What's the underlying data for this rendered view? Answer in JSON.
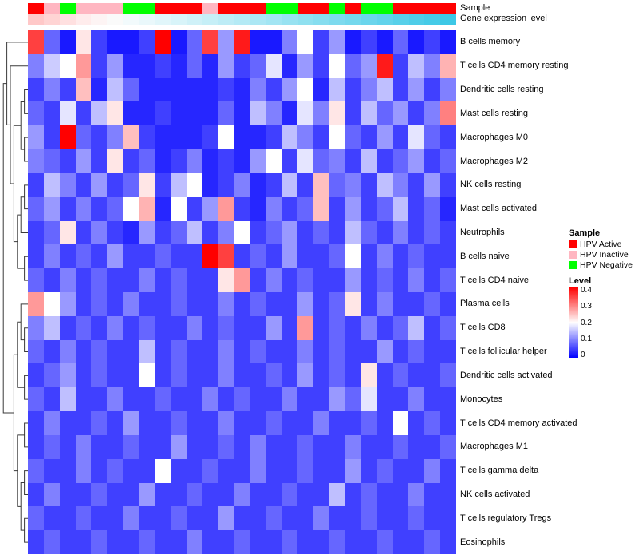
{
  "annotation_labels": {
    "sample": "Sample",
    "gene": "Gene expression level"
  },
  "legend": {
    "sample": {
      "title": "Sample",
      "items": [
        {
          "label": "HPV Active",
          "color": "#FF0000"
        },
        {
          "label": "HPV Inactive",
          "color": "#FFB6C1"
        },
        {
          "label": "HPV Negative",
          "color": "#00FF00"
        }
      ]
    },
    "level": {
      "title": "Level",
      "ticks": [
        "0.4",
        "0.3",
        "0.2",
        "0.1",
        "0"
      ],
      "top_color": "#FF0000",
      "mid_color": "#FFFFFF",
      "bottom_color": "#0000FF"
    }
  },
  "chart_data": {
    "type": "heatmap",
    "title": "",
    "rows": [
      "B cells memory",
      "T cells CD4 memory resting",
      "Dendritic cells resting",
      "Mast cells resting",
      "Macrophages M0",
      "Macrophages M2",
      "NK cells resting",
      "Mast cells activated",
      "Neutrophils",
      "B cells naive",
      "T cells CD4 naive",
      "Plasma cells",
      "T cells CD8",
      "T cells follicular helper",
      "Dendritic cells activated",
      "Monocytes",
      "T cells CD4 memory activated",
      "Macrophages M1",
      "T cells gamma delta",
      "NK cells activated",
      "T cells regulatory Tregs",
      "Eosinophils"
    ],
    "n_columns": 27,
    "color_scale": {
      "min": 0,
      "mid": 0.2,
      "max": 0.4,
      "min_color": "#0000FF",
      "mid_color": "#FFFFFF",
      "max_color": "#FF0000"
    },
    "column_annotations": {
      "sample_group": [
        "HPV Active",
        "HPV Inactive",
        "HPV Negative",
        "HPV Inactive",
        "HPV Inactive",
        "HPV Inactive",
        "HPV Negative",
        "HPV Negative",
        "HPV Active",
        "HPV Active",
        "HPV Active",
        "HPV Inactive",
        "HPV Active",
        "HPV Active",
        "HPV Active",
        "HPV Negative",
        "HPV Negative",
        "HPV Active",
        "HPV Active",
        "HPV Negative",
        "HPV Active",
        "HPV Negative",
        "HPV Negative",
        "HPV Active",
        "HPV Active",
        "HPV Active",
        "HPV Active"
      ],
      "sample_colors": [
        "#FF0000",
        "#FFB6C1",
        "#00FF00",
        "#FFB6C1",
        "#FFB6C1",
        "#FFB6C1",
        "#00FF00",
        "#00FF00",
        "#FF0000",
        "#FF0000",
        "#FF0000",
        "#FFB6C1",
        "#FF0000",
        "#FF0000",
        "#FF0000",
        "#00FF00",
        "#00FF00",
        "#FF0000",
        "#FF0000",
        "#00FF00",
        "#FF0000",
        "#00FF00",
        "#00FF00",
        "#FF0000",
        "#FF0000",
        "#FF0000",
        "#FF0000"
      ],
      "gene_expression_colors": [
        "#FFC8C8",
        "#FFD4D4",
        "#FFE0E0",
        "#FFECEC",
        "#FDF4F4",
        "#FAFAFA",
        "#F2FAFC",
        "#EAF8FB",
        "#E1F6FA",
        "#D8F4F9",
        "#CFF1F8",
        "#C6EFF7",
        "#BDECF6",
        "#B4EAF5",
        "#ABE7F4",
        "#A2E5F3",
        "#98E2F1",
        "#8FE0F0",
        "#86DDEF",
        "#7DDAEE",
        "#74D8ED",
        "#6BD5EC",
        "#62D3EB",
        "#58D0E9",
        "#4FCDE8",
        "#46CBE7",
        "#3DC8E6"
      ]
    },
    "values": [
      [
        0.35,
        0.08,
        0.02,
        0.22,
        0.05,
        0.02,
        0.02,
        0.05,
        0.4,
        0.02,
        0.08,
        0.35,
        0.12,
        0.38,
        0.02,
        0.02,
        0.1,
        0.2,
        0.05,
        0.12,
        0.02,
        0.05,
        0.02,
        0.08,
        0.02,
        0.05,
        0.02
      ],
      [
        0.1,
        0.16,
        0.2,
        0.28,
        0.05,
        0.12,
        0.03,
        0.03,
        0.05,
        0.03,
        0.08,
        0.03,
        0.12,
        0.05,
        0.08,
        0.18,
        0.03,
        0.12,
        0.05,
        0.2,
        0.08,
        0.12,
        0.38,
        0.05,
        0.15,
        0.1,
        0.26
      ],
      [
        0.05,
        0.1,
        0.05,
        0.25,
        0.03,
        0.15,
        0.08,
        0.03,
        0.03,
        0.03,
        0.03,
        0.03,
        0.05,
        0.03,
        0.1,
        0.05,
        0.12,
        0.2,
        0.03,
        0.15,
        0.05,
        0.1,
        0.15,
        0.05,
        0.12,
        0.05,
        0.1
      ],
      [
        0.08,
        0.05,
        0.18,
        0.05,
        0.15,
        0.22,
        0.03,
        0.03,
        0.05,
        0.03,
        0.03,
        0.03,
        0.08,
        0.03,
        0.15,
        0.1,
        0.03,
        0.18,
        0.1,
        0.22,
        0.05,
        0.15,
        0.08,
        0.12,
        0.05,
        0.1,
        0.3
      ],
      [
        0.12,
        0.05,
        0.4,
        0.08,
        0.05,
        0.1,
        0.25,
        0.05,
        0.03,
        0.03,
        0.03,
        0.05,
        0.2,
        0.03,
        0.03,
        0.05,
        0.15,
        0.1,
        0.05,
        0.2,
        0.08,
        0.05,
        0.12,
        0.05,
        0.18,
        0.08,
        0.05
      ],
      [
        0.1,
        0.08,
        0.05,
        0.12,
        0.05,
        0.22,
        0.05,
        0.08,
        0.03,
        0.05,
        0.1,
        0.03,
        0.05,
        0.03,
        0.12,
        0.2,
        0.05,
        0.18,
        0.08,
        0.1,
        0.05,
        0.15,
        0.05,
        0.08,
        0.12,
        0.05,
        0.08
      ],
      [
        0.05,
        0.15,
        0.1,
        0.05,
        0.12,
        0.05,
        0.08,
        0.22,
        0.05,
        0.15,
        0.2,
        0.03,
        0.05,
        0.1,
        0.03,
        0.05,
        0.15,
        0.05,
        0.25,
        0.08,
        0.1,
        0.05,
        0.15,
        0.1,
        0.05,
        0.12,
        0.05
      ],
      [
        0.08,
        0.12,
        0.05,
        0.1,
        0.05,
        0.08,
        0.2,
        0.26,
        0.03,
        0.2,
        0.05,
        0.12,
        0.28,
        0.05,
        0.03,
        0.1,
        0.05,
        0.08,
        0.25,
        0.05,
        0.12,
        0.05,
        0.08,
        0.15,
        0.05,
        0.08,
        0.03
      ],
      [
        0.05,
        0.08,
        0.22,
        0.05,
        0.1,
        0.05,
        0.03,
        0.12,
        0.05,
        0.08,
        0.15,
        0.05,
        0.1,
        0.2,
        0.05,
        0.08,
        0.12,
        0.05,
        0.08,
        0.05,
        0.15,
        0.08,
        0.05,
        0.1,
        0.05,
        0.08,
        0.05
      ],
      [
        0.05,
        0.1,
        0.05,
        0.08,
        0.05,
        0.12,
        0.05,
        0.05,
        0.08,
        0.05,
        0.05,
        0.4,
        0.35,
        0.05,
        0.08,
        0.05,
        0.12,
        0.05,
        0.05,
        0.08,
        0.2,
        0.05,
        0.1,
        0.05,
        0.08,
        0.05,
        0.05
      ],
      [
        0.08,
        0.05,
        0.1,
        0.05,
        0.08,
        0.05,
        0.05,
        0.1,
        0.05,
        0.08,
        0.05,
        0.05,
        0.22,
        0.28,
        0.05,
        0.1,
        0.05,
        0.08,
        0.05,
        0.05,
        0.12,
        0.05,
        0.08,
        0.05,
        0.1,
        0.05,
        0.08
      ],
      [
        0.28,
        0.2,
        0.12,
        0.05,
        0.08,
        0.05,
        0.1,
        0.05,
        0.05,
        0.08,
        0.05,
        0.05,
        0.1,
        0.05,
        0.08,
        0.05,
        0.05,
        0.12,
        0.05,
        0.08,
        0.22,
        0.05,
        0.1,
        0.05,
        0.05,
        0.08,
        0.05
      ],
      [
        0.1,
        0.15,
        0.05,
        0.08,
        0.05,
        0.1,
        0.05,
        0.08,
        0.05,
        0.05,
        0.1,
        0.05,
        0.08,
        0.05,
        0.05,
        0.12,
        0.05,
        0.28,
        0.05,
        0.08,
        0.05,
        0.1,
        0.05,
        0.08,
        0.15,
        0.05,
        0.08
      ],
      [
        0.08,
        0.05,
        0.1,
        0.05,
        0.08,
        0.05,
        0.05,
        0.15,
        0.05,
        0.08,
        0.05,
        0.05,
        0.1,
        0.05,
        0.08,
        0.05,
        0.05,
        0.1,
        0.05,
        0.08,
        0.05,
        0.05,
        0.12,
        0.05,
        0.08,
        0.05,
        0.05
      ],
      [
        0.05,
        0.08,
        0.12,
        0.05,
        0.08,
        0.05,
        0.05,
        0.2,
        0.05,
        0.08,
        0.05,
        0.05,
        0.1,
        0.05,
        0.05,
        0.08,
        0.05,
        0.12,
        0.05,
        0.08,
        0.05,
        0.22,
        0.05,
        0.08,
        0.05,
        0.05,
        0.08
      ],
      [
        0.08,
        0.05,
        0.15,
        0.05,
        0.05,
        0.1,
        0.05,
        0.05,
        0.08,
        0.05,
        0.05,
        0.1,
        0.05,
        0.08,
        0.05,
        0.05,
        0.1,
        0.05,
        0.05,
        0.12,
        0.08,
        0.18,
        0.05,
        0.05,
        0.1,
        0.05,
        0.05
      ],
      [
        0.05,
        0.1,
        0.05,
        0.05,
        0.08,
        0.05,
        0.12,
        0.05,
        0.05,
        0.08,
        0.05,
        0.05,
        0.1,
        0.05,
        0.05,
        0.08,
        0.05,
        0.05,
        0.1,
        0.05,
        0.05,
        0.08,
        0.05,
        0.2,
        0.05,
        0.08,
        0.05
      ],
      [
        0.05,
        0.08,
        0.05,
        0.1,
        0.05,
        0.05,
        0.08,
        0.05,
        0.05,
        0.12,
        0.05,
        0.05,
        0.08,
        0.05,
        0.1,
        0.05,
        0.05,
        0.08,
        0.05,
        0.05,
        0.1,
        0.05,
        0.05,
        0.08,
        0.05,
        0.05,
        0.08
      ],
      [
        0.08,
        0.05,
        0.05,
        0.1,
        0.05,
        0.08,
        0.05,
        0.05,
        0.2,
        0.05,
        0.05,
        0.08,
        0.05,
        0.05,
        0.1,
        0.05,
        0.05,
        0.08,
        0.05,
        0.05,
        0.12,
        0.05,
        0.08,
        0.05,
        0.05,
        0.1,
        0.05
      ],
      [
        0.05,
        0.1,
        0.05,
        0.05,
        0.08,
        0.05,
        0.05,
        0.12,
        0.05,
        0.05,
        0.08,
        0.05,
        0.05,
        0.1,
        0.05,
        0.05,
        0.08,
        0.05,
        0.05,
        0.15,
        0.05,
        0.08,
        0.05,
        0.05,
        0.1,
        0.05,
        0.05
      ],
      [
        0.08,
        0.05,
        0.05,
        0.08,
        0.05,
        0.05,
        0.1,
        0.05,
        0.05,
        0.08,
        0.05,
        0.05,
        0.12,
        0.05,
        0.05,
        0.08,
        0.05,
        0.05,
        0.1,
        0.05,
        0.05,
        0.08,
        0.05,
        0.05,
        0.08,
        0.05,
        0.05
      ],
      [
        0.05,
        0.08,
        0.05,
        0.05,
        0.08,
        0.05,
        0.05,
        0.08,
        0.05,
        0.05,
        0.1,
        0.05,
        0.05,
        0.08,
        0.05,
        0.05,
        0.08,
        0.05,
        0.05,
        0.08,
        0.05,
        0.05,
        0.08,
        0.05,
        0.05,
        0.08,
        0.05
      ]
    ]
  }
}
